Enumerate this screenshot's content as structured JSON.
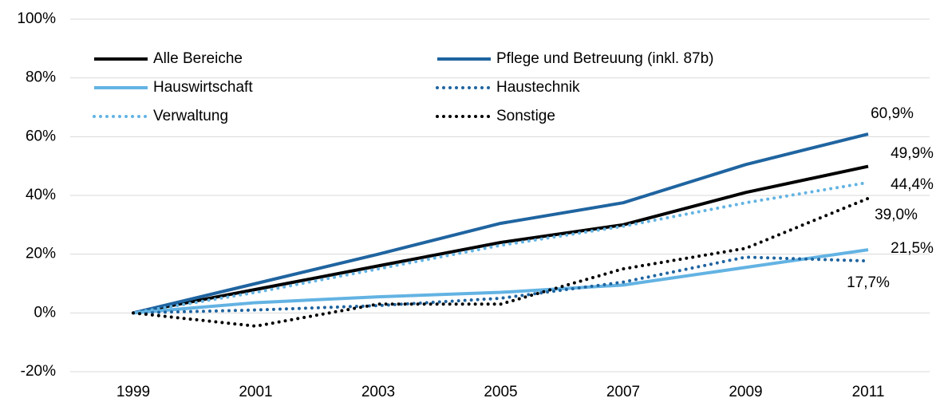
{
  "chart_data": {
    "type": "line",
    "categories": [
      "1999",
      "2001",
      "2003",
      "2005",
      "2007",
      "2009",
      "2011"
    ],
    "series": [
      {
        "name": "Alle Bereiche",
        "color": "#000000",
        "dash": "solid",
        "values": [
          0,
          8,
          16,
          24,
          30,
          41,
          49.9
        ],
        "value_labels": [
          null,
          null,
          null,
          null,
          null,
          null,
          "49,9%"
        ]
      },
      {
        "name": "Pflege und Betreuung (inkl. 87b)",
        "color": "#1f64a0",
        "dash": "solid",
        "values": [
          0,
          10,
          20,
          30.5,
          37.5,
          50.5,
          60.9
        ],
        "value_labels": [
          null,
          null,
          null,
          null,
          null,
          null,
          "60,9%"
        ]
      },
      {
        "name": "Hauswirtschaft",
        "color": "#63b3e3",
        "dash": "solid",
        "values": [
          0,
          3.5,
          5.5,
          7,
          9.5,
          15.5,
          21.5
        ],
        "value_labels": [
          null,
          null,
          null,
          null,
          null,
          null,
          "21,5%"
        ]
      },
      {
        "name": "Haustechnik",
        "color": "#1f64a0",
        "dash": "dotted",
        "values": [
          0,
          1,
          2.5,
          5,
          10.5,
          19,
          17.7
        ],
        "value_labels": [
          null,
          null,
          null,
          null,
          null,
          null,
          "17,7%"
        ]
      },
      {
        "name": "Verwaltung",
        "color": "#63b3e3",
        "dash": "dotted",
        "values": [
          0,
          7,
          15,
          23,
          29.5,
          37.5,
          44.4
        ],
        "value_labels": [
          null,
          null,
          null,
          null,
          null,
          null,
          "44,4%"
        ]
      },
      {
        "name": "Sonstige",
        "color": "#000000",
        "dash": "dotted",
        "values": [
          0,
          -4.5,
          3,
          3,
          15,
          22,
          39.0
        ],
        "value_labels": [
          null,
          null,
          null,
          null,
          null,
          null,
          "39,0%"
        ]
      }
    ],
    "ylim": [
      -20,
      100
    ],
    "yticks": [
      {
        "value": -20,
        "label": "-20%"
      },
      {
        "value": 0,
        "label": "0%"
      },
      {
        "value": 20,
        "label": "20%"
      },
      {
        "value": 40,
        "label": "40%"
      },
      {
        "value": 60,
        "label": "60%"
      },
      {
        "value": 80,
        "label": "80%"
      },
      {
        "value": 100,
        "label": "100%"
      }
    ],
    "grid": true
  }
}
